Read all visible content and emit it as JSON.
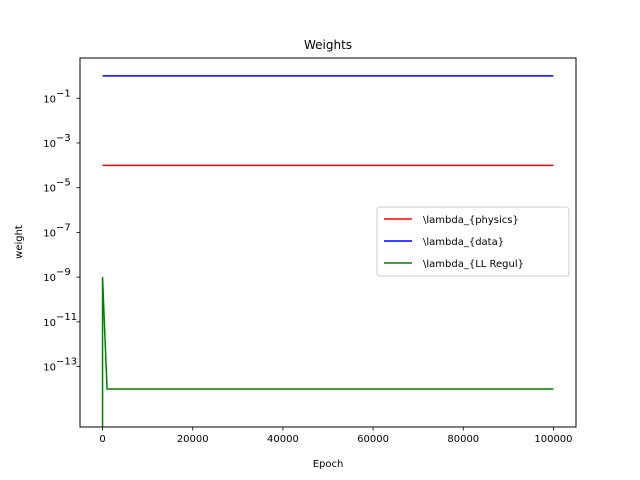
{
  "chart_data": {
    "type": "line",
    "title": "Weights",
    "xlabel": "Epoch",
    "ylabel": "weight",
    "xlim": [
      -5000,
      105000
    ],
    "ylim_log10": [
      -15.7,
      0.8
    ],
    "yscale": "log",
    "x_ticks": [
      0,
      20000,
      40000,
      60000,
      80000,
      100000
    ],
    "y_tick_exponents": [
      -1,
      -3,
      -5,
      -7,
      -9,
      -11,
      -13
    ],
    "legend_position": "center-right",
    "grid": false,
    "series": [
      {
        "name": "\\lambda_{physics}",
        "color": "#ff0000",
        "points": [
          [
            0,
            0.0001
          ],
          [
            100000,
            0.0001
          ]
        ]
      },
      {
        "name": "\\lambda_{data}",
        "color": "#0000ff",
        "points": [
          [
            0,
            1.0
          ],
          [
            100000,
            1.0
          ]
        ]
      },
      {
        "name": "\\lambda_{LL Regul}",
        "color": "#008000",
        "points": [
          [
            0,
            1e-16
          ],
          [
            0,
            1e-09
          ],
          [
            1000,
            1e-14
          ],
          [
            100000,
            1e-14
          ]
        ]
      }
    ]
  }
}
